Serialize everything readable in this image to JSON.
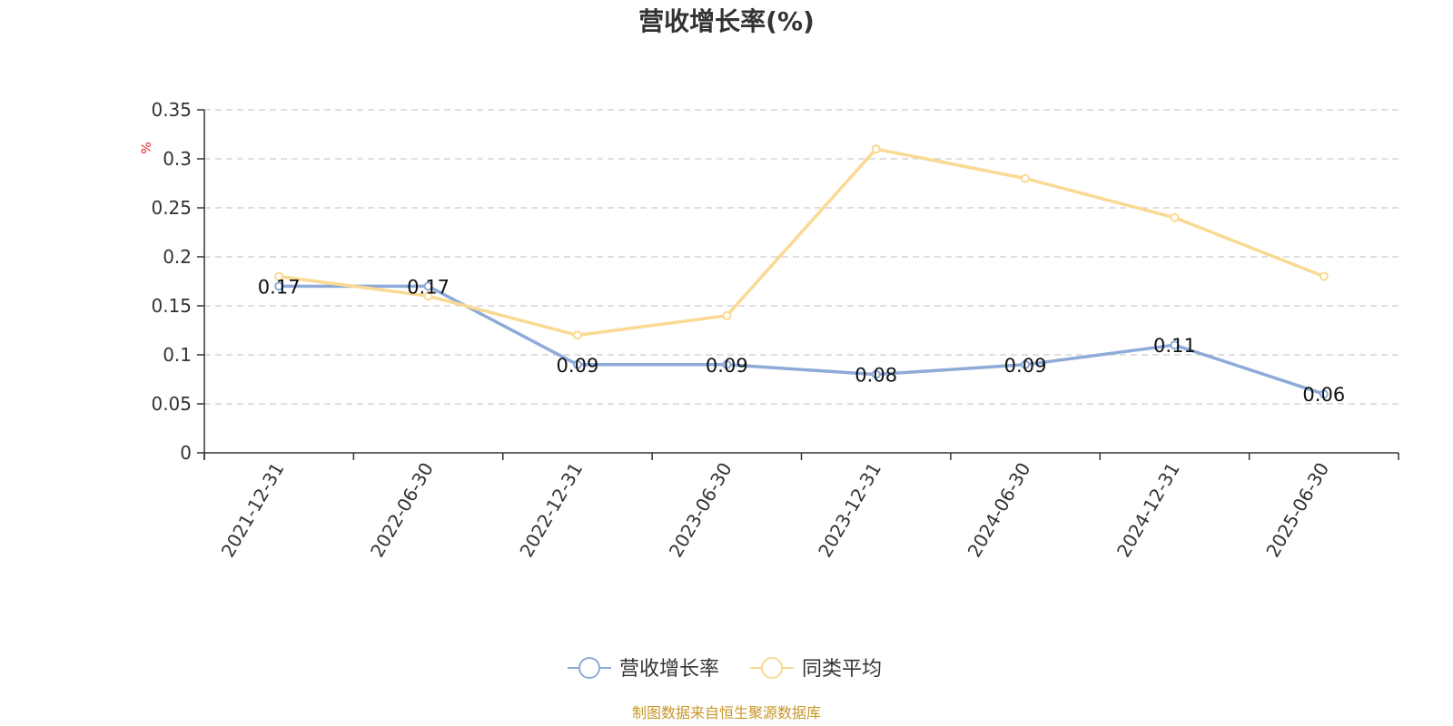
{
  "chart_data": {
    "type": "line",
    "title": "营收增长率(%)",
    "ylabel": "%",
    "xlabel": "",
    "categories": [
      "2021-12-31",
      "2022-06-30",
      "2022-12-31",
      "2023-06-30",
      "2023-12-31",
      "2024-06-30",
      "2024-12-31",
      "2025-06-30"
    ],
    "ylim": [
      0,
      0.35
    ],
    "yticks": [
      "0",
      "0.05",
      "0.1",
      "0.15",
      "0.2",
      "0.25",
      "0.3",
      "0.35"
    ],
    "grid": true,
    "legend_position": "bottom-center",
    "series": [
      {
        "name": "营收增长率",
        "color": "#8eaad8",
        "values": [
          0.17,
          0.17,
          0.09,
          0.09,
          0.08,
          0.09,
          0.11,
          0.06
        ],
        "data_labels": [
          "0.17",
          "0.17",
          "0.09",
          "0.09",
          "0.08",
          "0.09",
          "0.11",
          "0.06"
        ]
      },
      {
        "name": "同类平均",
        "color": "#fad993",
        "values": [
          0.18,
          0.16,
          0.12,
          0.14,
          0.31,
          0.28,
          0.24,
          0.18
        ]
      }
    ]
  },
  "source_note": "制图数据来自恒生聚源数据库"
}
